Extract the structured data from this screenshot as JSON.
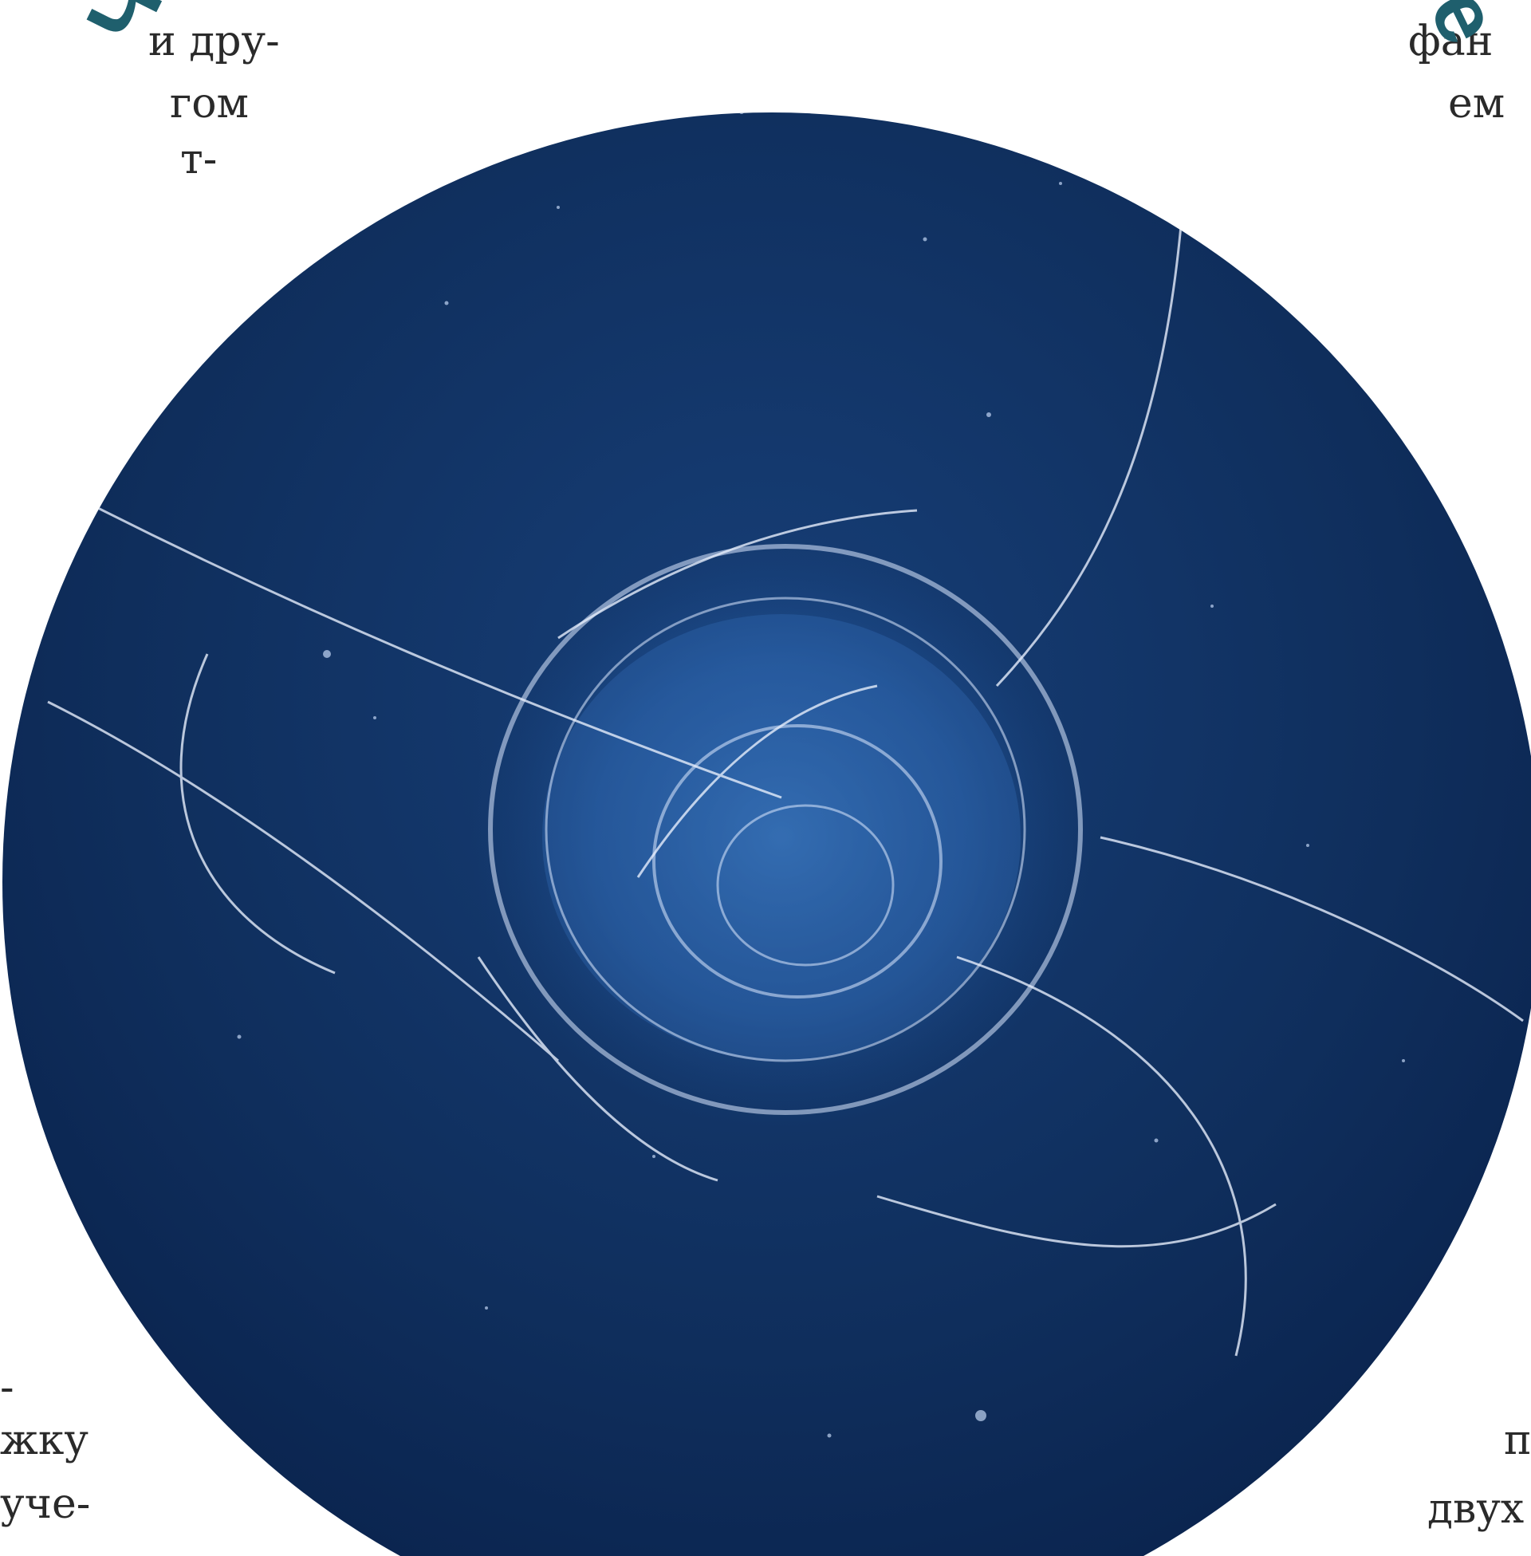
{
  "title": {
    "text": "Чем дальше от берега, тем загадочнее",
    "color": "#1f5f6d"
  },
  "text_fragments": {
    "left_top": [
      "и дру-",
      "гом",
      "т-"
    ],
    "left_bottom": [
      "-",
      "жку",
      "уче-"
    ],
    "right_top": [
      "фан",
      "ем"
    ],
    "right_bottom": [
      "п",
      "двух"
    ]
  },
  "photo": {
    "subject": "jellyfish",
    "background_color": "#0f2e5c"
  }
}
